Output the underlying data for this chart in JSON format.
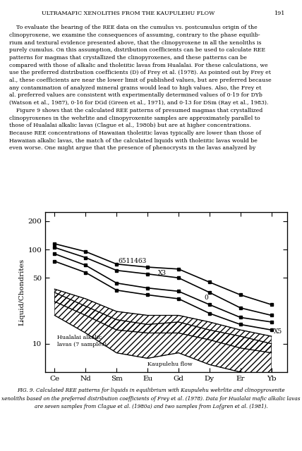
{
  "header_title": "ULTRAMAFIC XENOLITHS FROM THE KAUPULEHU FLOW",
  "page_number": "191",
  "xlabel_elements": [
    "Ce",
    "Nd",
    "Sm",
    "Eu",
    "Gd",
    "Dy",
    "Er",
    "Yb"
  ],
  "ylabel": "Liquid/Chondrites",
  "yticks": [
    10,
    50,
    100,
    200
  ],
  "caption_line1": "FIG. 9. Calculated REE patterns for liquids in equilibrium with Kaupulehu wehrlite and clinopyroxenite",
  "caption_line2": "xenoliths based on the preferred distribution coefficients of Frey et al. (1978). Data for Hualalai mafic alkalic lavas",
  "caption_line3": "are seven samples from Clague et al. (1980a) and two samples from Lofgren et al. (1981).",
  "body_lines": [
    "    To evaluate the bearing of the REE data on the cumulus vs. postcumulus origin of the",
    "clinopyroxene, we examine the consequences of assuming, contrary to the phase equilib-",
    "rium and textural evidence presented above, that the clinopyroxene in all the xenoliths is",
    "purely cumulus. On this assumption, distribution coefficients can be used to calculate REE",
    "patterns for magmas that crystallized the clinopyroxenes, and these patterns can be",
    "compared with those of alkalic and tholeiitic lavas from Hualalai. For these calculations, we",
    "use the preferred distribution coefficients (D) of Frey et al. (1978). As pointed out by Frey et",
    "al., these coefficients are near the lower limit of published values, but are preferred because",
    "any contamination of analyzed mineral grains would lead to high values. Also, the Frey et",
    "al. preferred values are consistent with experimentally determined values of 0·19 for DYb",
    "(Watson et al., 1987), 0·16 for DGd (Green et al., 1971), and 0·13 for DSm (Ray et al., 1983).",
    "    Figure 9 shows that the calculated REE patterns of presumed magmas that crystallized",
    "clinopyroxenes in the wehrlite and clinopyroxenite samples are approximately parallel to",
    "those of Hualalai alkalic lavas (Clague et al., 1980b) but are at higher concentrations.",
    "Because REE concentrations of Hawaiian tholeiitic lavas typically are lower than those of",
    "Hawaiian alkalic lavas, the match of the calculated liquids with tholeiitic lavas would be",
    "even worse. One might argue that the presence of phenocrysts in the lavas analyzed by"
  ],
  "line_6511463": {
    "y": [
      115,
      95,
      70,
      65,
      62,
      45,
      33,
      26
    ]
  },
  "line_X3": {
    "y": [
      105,
      82,
      60,
      55,
      50,
      35,
      24,
      20
    ]
  },
  "line_Q": {
    "y": [
      90,
      68,
      44,
      39,
      36,
      26,
      19,
      17
    ]
  },
  "line_X5": {
    "y": [
      75,
      57,
      37,
      33,
      30,
      21,
      16,
      14
    ]
  },
  "hual_upper": [
    38,
    30,
    22,
    20,
    20,
    17,
    14,
    12
  ],
  "hual_lower": [
    28,
    20,
    14,
    13,
    13,
    11,
    9,
    8
  ],
  "kaup_upper": [
    35,
    25,
    18,
    16,
    17,
    14,
    12,
    10
  ],
  "kaup_lower": [
    20,
    13,
    8,
    7,
    8,
    6,
    5,
    4.5
  ],
  "background_color": "#ffffff"
}
